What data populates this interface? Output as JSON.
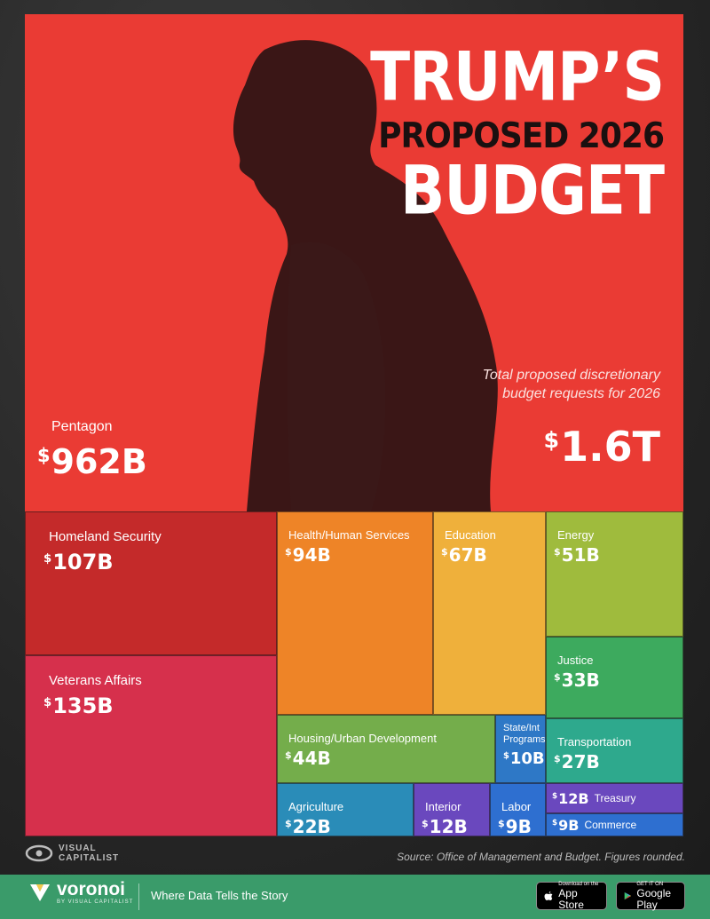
{
  "title": {
    "line1": "TRUMP’S",
    "line2": "PROPOSED 2026",
    "line3": "BUDGET"
  },
  "total": {
    "note": "Total proposed discretionary budget requests for 2026",
    "value": "1.6T"
  },
  "chart_data": {
    "type": "treemap",
    "currency_symbol": "$",
    "unit": "B",
    "items": [
      {
        "name": "Pentagon",
        "value": 962,
        "label": "962B",
        "color": "#ea3b34"
      },
      {
        "name": "Homeland Security",
        "value": 107,
        "label": "107B",
        "color": "#c42a2a"
      },
      {
        "name": "Veterans Affairs",
        "value": 135,
        "label": "135B",
        "color": "#d6304c"
      },
      {
        "name": "Health/Human Services",
        "value": 94,
        "label": "94B",
        "color": "#ee8427"
      },
      {
        "name": "Education",
        "value": 67,
        "label": "67B",
        "color": "#efb03b"
      },
      {
        "name": "Energy",
        "value": 51,
        "label": "51B",
        "color": "#9fbb3d"
      },
      {
        "name": "Justice",
        "value": 33,
        "label": "33B",
        "color": "#3daa5e"
      },
      {
        "name": "Housing/Urban Development",
        "value": 44,
        "label": "44B",
        "color": "#74ad4b"
      },
      {
        "name": "State/Int Programs",
        "value": 10,
        "label": "10B",
        "color": "#2e78c6"
      },
      {
        "name": "Transportation",
        "value": 27,
        "label": "27B",
        "color": "#2ea98d"
      },
      {
        "name": "Agriculture",
        "value": 22,
        "label": "22B",
        "color": "#2a8cb8"
      },
      {
        "name": "Interior",
        "value": 12,
        "label": "12B",
        "color": "#6a48be"
      },
      {
        "name": "Labor",
        "value": 9,
        "label": "9B",
        "color": "#2e6fd0"
      },
      {
        "name": "Treasury",
        "value": 12,
        "label": "12B",
        "color": "#6a48be"
      },
      {
        "name": "Commerce",
        "value": 9,
        "label": "9B",
        "color": "#2e6fd0"
      }
    ]
  },
  "branding": {
    "publisher_line1": "VISUAL",
    "publisher_line2": "CAPITALIST",
    "source": "Source: Office of Management and Budget. Figures rounded."
  },
  "footer": {
    "brand": "voronoi",
    "brand_sub": "BY VISUAL CAPITALIST",
    "tagline": "Where Data Tells the Story",
    "appstore_small": "Download on the",
    "appstore_big": "App Store",
    "googleplay_small": "GET IT ON",
    "googleplay_big": "Google Play"
  }
}
